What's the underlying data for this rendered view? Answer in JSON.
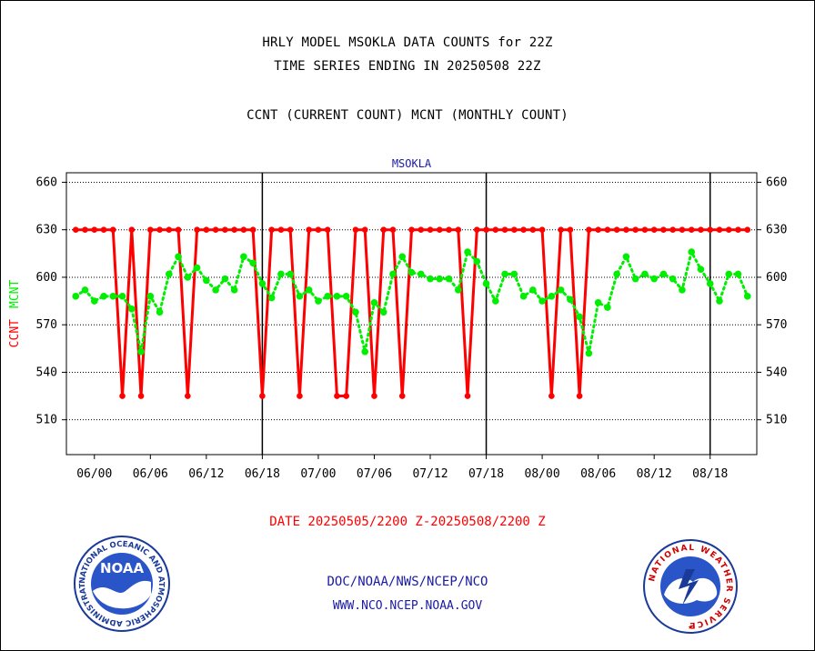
{
  "header": {
    "title_line1": "HRLY MODEL MSOKLA DATA COUNTS for 22Z",
    "title_line2": "TIME SERIES ENDING IN 20250508 22Z",
    "subtitle": "CCNT (CURRENT COUNT) MCNT (MONTHLY COUNT)"
  },
  "footer": {
    "date_range": "DATE 20250505/2200 Z-20250508/2200 Z",
    "agency_path": "DOC/NOAA/NWS/NCEP/NCO",
    "website": "WWW.NCO.NCEP.NOAA.GOV"
  },
  "logos": {
    "noaa_text": "NOAA",
    "noaa_ring_text": "NATIONAL OCEANIC AND ATMOSPHERIC ADMINISTRATION • U.S. DEPARTMENT OF COMMERCE •",
    "nws_ring_text": "NATIONAL WEATHER SERVICE"
  },
  "colors": {
    "ccnt": "#ff0000",
    "mcnt": "#00ee00",
    "label_blue": "#1a1aa6"
  },
  "chart_data": {
    "type": "line",
    "title": "MSOKLA",
    "ylabel_parts": [
      {
        "text": "CCNT",
        "color": "#ff0000"
      },
      {
        "text": "MCNT",
        "color": "#00ee00"
      }
    ],
    "ylim": [
      488,
      666
    ],
    "yticks": [
      510,
      540,
      570,
      600,
      630,
      660
    ],
    "grid": true,
    "xlim": [
      -3,
      71
    ],
    "xtick_labels": [
      {
        "x": 0,
        "label": "06/00"
      },
      {
        "x": 6,
        "label": "06/06"
      },
      {
        "x": 12,
        "label": "06/12"
      },
      {
        "x": 18,
        "label": "06/18"
      },
      {
        "x": 24,
        "label": "07/00"
      },
      {
        "x": 30,
        "label": "07/06"
      },
      {
        "x": 36,
        "label": "07/12"
      },
      {
        "x": 42,
        "label": "07/18"
      },
      {
        "x": 48,
        "label": "08/00"
      },
      {
        "x": 54,
        "label": "08/06"
      },
      {
        "x": 60,
        "label": "08/12"
      },
      {
        "x": 66,
        "label": "08/18"
      }
    ],
    "day_boundaries": [
      18,
      42,
      66
    ],
    "x": [
      -2,
      -1,
      0,
      1,
      2,
      3,
      4,
      5,
      6,
      7,
      8,
      9,
      10,
      11,
      12,
      13,
      14,
      15,
      16,
      17,
      18,
      19,
      20,
      21,
      22,
      23,
      24,
      25,
      26,
      27,
      28,
      29,
      30,
      31,
      32,
      33,
      34,
      35,
      36,
      37,
      38,
      39,
      40,
      41,
      42,
      43,
      44,
      45,
      46,
      47,
      48,
      49,
      50,
      51,
      52,
      53,
      54,
      55,
      56,
      57,
      58,
      59,
      60,
      61,
      62,
      63,
      64,
      65,
      66,
      67,
      68,
      69,
      70
    ],
    "series": [
      {
        "name": "CCNT",
        "color": "#ff0000",
        "values": [
          630,
          630,
          630,
          630,
          630,
          525,
          630,
          525,
          630,
          630,
          630,
          630,
          525,
          630,
          630,
          630,
          630,
          630,
          630,
          630,
          525,
          630,
          630,
          630,
          525,
          630,
          630,
          630,
          525,
          525,
          630,
          630,
          525,
          630,
          630,
          525,
          630,
          630,
          630,
          630,
          630,
          630,
          525,
          630,
          630,
          630,
          630,
          630,
          630,
          630,
          630,
          525,
          630,
          630,
          525,
          630,
          630,
          630,
          630,
          630,
          630,
          630,
          630,
          630,
          630,
          630,
          630,
          630,
          630,
          630,
          630,
          630,
          630
        ]
      },
      {
        "name": "MCNT",
        "color": "#00ee00",
        "values": [
          588,
          592,
          585,
          588,
          588,
          588,
          580,
          553,
          588,
          578,
          602,
          613,
          600,
          606,
          598,
          592,
          599,
          592,
          613,
          609,
          596,
          587,
          602,
          602,
          588,
          592,
          585,
          588,
          588,
          588,
          578,
          553,
          584,
          578,
          602,
          613,
          603,
          602,
          599,
          599,
          599,
          592,
          616,
          610,
          596,
          585,
          602,
          602,
          588,
          592,
          585,
          588,
          592,
          586,
          575,
          552,
          584,
          581,
          602,
          613,
          599,
          602,
          599,
          602,
          599,
          592,
          616,
          605,
          596,
          585,
          602,
          602,
          588
        ]
      }
    ]
  }
}
